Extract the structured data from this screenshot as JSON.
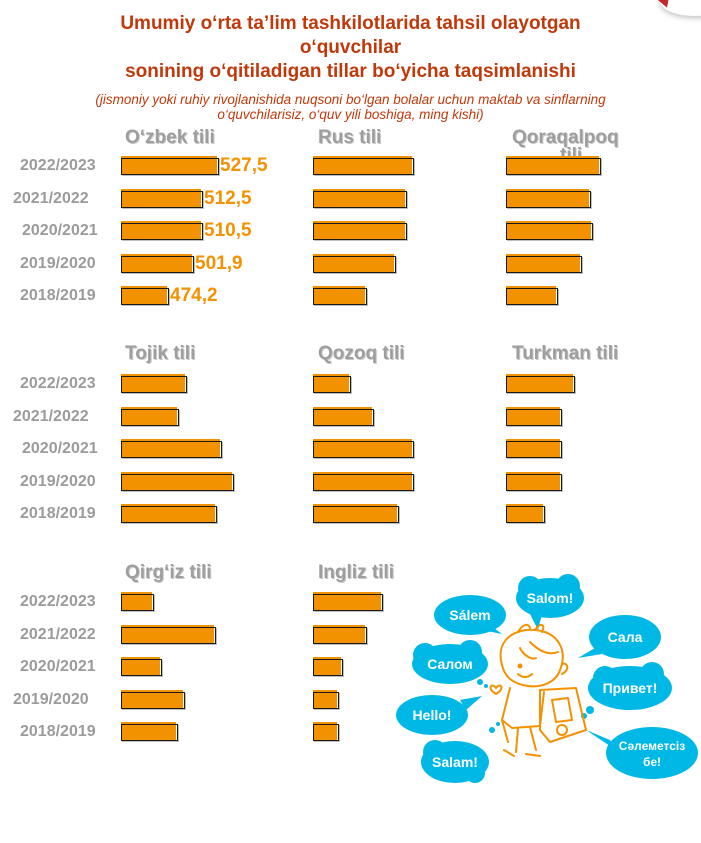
{
  "header": {
    "title_line1": "Umumiy o‘rta ta’lim tashkilotlarida tahsil olayotgan",
    "title_line2": "o‘quvchilar",
    "title_line3": "sonining o‘qitiladigan tillar bo‘yicha taqsimlanishi",
    "subtitle_line1": "(jismoniy yoki ruhiy rivojlanishida nuqsoni bo‘lgan bolalar uchun maktab va sinflarning",
    "subtitle_line2": "o‘quvchilarisiz, o‘quv yili boshiga, ming kishi)"
  },
  "colors": {
    "bar": "#f39200",
    "title": "#c0390b",
    "label": "#9b9b9b",
    "bubble": "#00b8e6",
    "character": "#f39200"
  },
  "years": [
    "2022/2023",
    "2021/2022",
    "2020/2021",
    "2019/2020",
    "2018/2019"
  ],
  "chart_data": [
    {
      "type": "bar",
      "title": "O‘zbek tili",
      "categories": [
        "2022/2023",
        "2021/2022",
        "2020/2021",
        "2019/2020",
        "2018/2019"
      ],
      "values": [
        527.5,
        512.5,
        510.5,
        501.9,
        474.2
      ],
      "labels": [
        "527,5",
        "512,5",
        "510,5",
        "501,9",
        "474,2"
      ],
      "relative_length": [
        98,
        82,
        82,
        73,
        48
      ],
      "unit": "ming kishi"
    },
    {
      "type": "bar",
      "title": "Rus tili",
      "categories": [
        "2022/2023",
        "2021/2022",
        "2020/2021",
        "2019/2020",
        "2018/2019"
      ],
      "relative_length": [
        101,
        94,
        94,
        83,
        54
      ]
    },
    {
      "type": "bar",
      "title_line1": "Qoraqalpoq",
      "title_line2": "tili",
      "categories": [
        "2022/2023",
        "2021/2022",
        "2020/2021",
        "2019/2020",
        "2018/2019"
      ],
      "relative_length": [
        95,
        85,
        87,
        76,
        52
      ]
    },
    {
      "type": "bar",
      "title": "Tojik tili",
      "categories": [
        "2022/2023",
        "2021/2022",
        "2020/2021",
        "2019/2020",
        "2018/2019"
      ],
      "relative_length": [
        66,
        58,
        101,
        113,
        96
      ]
    },
    {
      "type": "bar",
      "title": "Qozoq tili",
      "categories": [
        "2022/2023",
        "2021/2022",
        "2020/2021",
        "2019/2020",
        "2018/2019"
      ],
      "relative_length": [
        38,
        61,
        101,
        101,
        86
      ]
    },
    {
      "type": "bar",
      "title": "Turkman tili",
      "categories": [
        "2022/2023",
        "2021/2022",
        "2020/2021",
        "2019/2020",
        "2018/2019"
      ],
      "relative_length": [
        69,
        56,
        56,
        56,
        39
      ]
    },
    {
      "type": "bar",
      "title": "Qirg‘iz tili",
      "categories": [
        "2022/2023",
        "2021/2022",
        "2020/2021",
        "2019/2020",
        "2018/2019"
      ],
      "relative_length": [
        33,
        95,
        41,
        64,
        57
      ]
    },
    {
      "type": "bar",
      "title": "Ingliz tili",
      "categories": [
        "2022/2023",
        "2021/2022",
        "2020/2021",
        "2019/2020",
        "2018/2019"
      ],
      "relative_length": [
        70,
        54,
        30,
        26,
        26
      ]
    }
  ],
  "illustration": {
    "greetings": [
      "Sálem",
      "Salom!",
      "Сала",
      "Салом",
      "Привет!",
      "Hello!",
      "Сәлеметсіз",
      "бе!",
      "Salam!"
    ]
  }
}
